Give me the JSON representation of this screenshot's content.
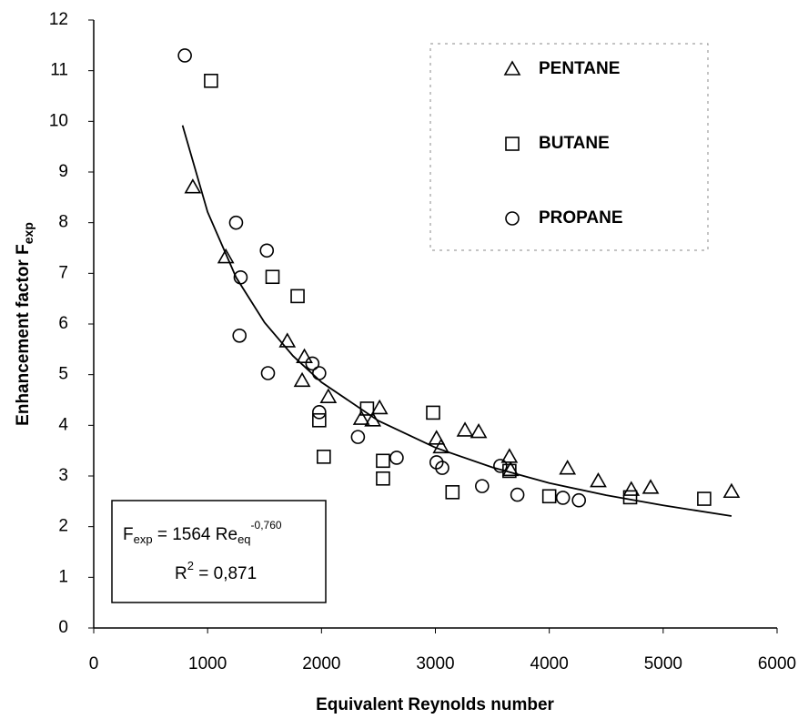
{
  "chart_data": {
    "type": "scatter",
    "xlabel": "Equivalent Reynolds number",
    "ylabel": {
      "text": "Enhancement factor F",
      "sub": "exp"
    },
    "xlim": [
      0,
      6000
    ],
    "ylim": [
      0,
      12
    ],
    "xticks": [
      0,
      1000,
      2000,
      3000,
      4000,
      5000,
      6000
    ],
    "yticks": [
      0,
      1,
      2,
      3,
      4,
      5,
      6,
      7,
      8,
      9,
      10,
      11,
      12
    ],
    "legend": "upper right",
    "series": [
      {
        "name": "PENTANE",
        "marker": "triangle",
        "color": "#000000",
        "x": [
          870,
          1160,
          1700,
          1850,
          1830,
          2060,
          2350,
          2450,
          2510,
          3010,
          3050,
          3260,
          3380,
          3650,
          3660,
          4160,
          4430,
          4720,
          4890,
          5600
        ],
        "values": [
          8.7,
          7.32,
          5.66,
          5.35,
          4.88,
          4.56,
          4.13,
          4.1,
          4.34,
          3.74,
          3.57,
          3.9,
          3.87,
          3.38,
          3.12,
          3.15,
          2.9,
          2.73,
          2.77,
          2.69
        ]
      },
      {
        "name": "BUTANE",
        "marker": "square",
        "color": "#000000",
        "x": [
          1030,
          1570,
          1790,
          1980,
          2020,
          2400,
          2540,
          2540,
          2980,
          3150,
          3650,
          4000,
          4710,
          5360
        ],
        "values": [
          10.8,
          6.93,
          6.55,
          4.1,
          3.38,
          4.33,
          3.3,
          2.95,
          4.25,
          2.68,
          3.1,
          2.6,
          2.58,
          2.55
        ]
      },
      {
        "name": "PROPANE",
        "marker": "circle",
        "color": "#000000",
        "x": [
          800,
          1250,
          1290,
          1280,
          1520,
          1530,
          1920,
          1980,
          1980,
          2320,
          2660,
          3010,
          3060,
          3410,
          3570,
          3720,
          4120,
          4260
        ],
        "values": [
          11.3,
          8.0,
          6.92,
          5.77,
          7.45,
          5.03,
          5.22,
          5.03,
          4.26,
          3.77,
          3.36,
          3.27,
          3.16,
          2.8,
          3.2,
          2.63,
          2.57,
          2.52
        ]
      }
    ],
    "fit": {
      "color": "#000000",
      "x": [
        780,
        1000,
        1250,
        1500,
        1750,
        2000,
        2500,
        3000,
        3500,
        4000,
        4500,
        5000,
        5600
      ],
      "values": [
        9.92,
        8.21,
        6.92,
        6.03,
        5.37,
        4.85,
        4.09,
        3.56,
        3.17,
        2.86,
        2.62,
        2.42,
        2.21
      ]
    },
    "equation": {
      "lhs": "F",
      "lhs_sub": "exp",
      "mid": " = 1564 Re",
      "sub": "eq",
      "sup": "-0,760"
    },
    "r2": {
      "base": "R",
      "sup": "2",
      "rest": " = 0,871"
    }
  }
}
